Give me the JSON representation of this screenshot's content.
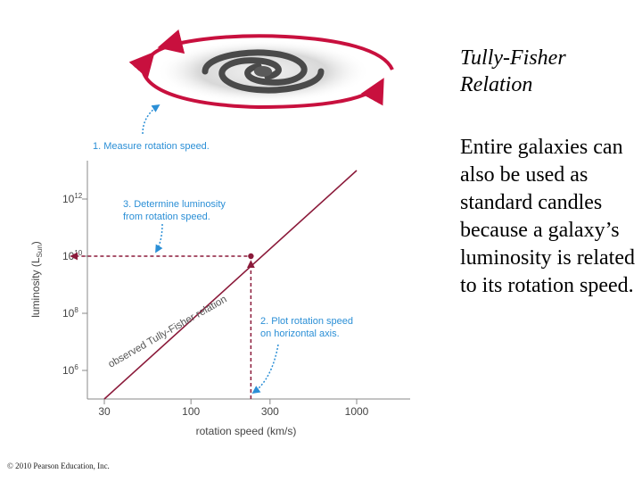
{
  "slide": {
    "title": "Tully-Fisher Relation",
    "body": "Entire galaxies can also be used as standard candles because a galaxy’s luminosity is related to its rotation speed."
  },
  "figure": {
    "step1": "1. Measure rotation speed.",
    "step2_line1": "2. Plot rotation speed",
    "step2_line2": "on horizontal axis.",
    "step3_line1": "3. Determine luminosity",
    "step3_line2": "from rotation speed.",
    "relation_label": "observed Tully-Fisher relation",
    "y_axis_label": "luminosity (L",
    "y_axis_sub": "Sun",
    "y_axis_end": ")",
    "x_axis_label": "rotation speed (km/s)",
    "copyright": "© 2010 Pearson Education, Inc.",
    "colors": {
      "line": "#8b1a3a",
      "arrow": "#c8103e",
      "annotation": "#2b8fd6",
      "dotted": "#8b1a3a"
    }
  },
  "chart_data": {
    "type": "line",
    "xscale": "log",
    "yscale": "log",
    "x_ticks": [
      "30",
      "100",
      "300",
      "1000"
    ],
    "y_ticks": [
      {
        "base": "10",
        "exp": "6"
      },
      {
        "base": "10",
        "exp": "8"
      },
      {
        "base": "10",
        "exp": "10"
      },
      {
        "base": "10",
        "exp": "12"
      }
    ],
    "series": [
      {
        "name": "observed Tully-Fisher relation",
        "x": [
          30,
          1000
        ],
        "y": [
          100000.0,
          10000000000000.0
        ]
      }
    ],
    "marked_point": {
      "x": 230,
      "y": 10000000000.0
    },
    "xlabel": "rotation speed (km/s)",
    "ylabel": "luminosity (L_Sun)",
    "xlim": [
      20,
      2000
    ],
    "ylim": [
      100000.0,
      10000000000000.0
    ],
    "grid": false
  }
}
